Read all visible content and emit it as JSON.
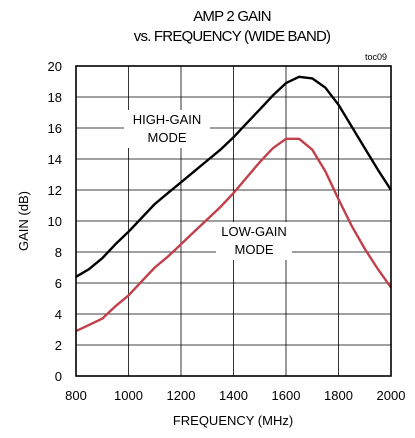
{
  "chart_data": {
    "type": "line",
    "title_lines": [
      "AMP 2 GAIN",
      "vs. FREQUENCY (WIDE BAND)"
    ],
    "note": "toc09",
    "xlabel": "FREQUENCY (MHz)",
    "ylabel": "GAIN (dB)",
    "xlim": [
      800,
      2000
    ],
    "ylim": [
      0,
      20
    ],
    "x_ticks": [
      800,
      1000,
      1200,
      1400,
      1600,
      1800,
      2000
    ],
    "y_ticks": [
      0,
      2,
      4,
      6,
      8,
      10,
      12,
      14,
      16,
      18,
      20
    ],
    "grid": true,
    "annotations": {
      "high": [
        "HIGH-GAIN",
        "MODE"
      ],
      "low": [
        "LOW-GAIN",
        "MODE"
      ]
    },
    "series": [
      {
        "name": "HIGH-GAIN MODE",
        "color": "#000000",
        "points": [
          [
            800,
            6.4
          ],
          [
            850,
            6.9
          ],
          [
            900,
            7.6
          ],
          [
            950,
            8.5
          ],
          [
            1000,
            9.3
          ],
          [
            1050,
            10.2
          ],
          [
            1100,
            11.1
          ],
          [
            1150,
            11.8
          ],
          [
            1200,
            12.5
          ],
          [
            1250,
            13.2
          ],
          [
            1300,
            13.9
          ],
          [
            1350,
            14.6
          ],
          [
            1400,
            15.4
          ],
          [
            1450,
            16.3
          ],
          [
            1500,
            17.2
          ],
          [
            1550,
            18.1
          ],
          [
            1600,
            18.9
          ],
          [
            1650,
            19.3
          ],
          [
            1700,
            19.2
          ],
          [
            1750,
            18.6
          ],
          [
            1800,
            17.5
          ],
          [
            1850,
            16.1
          ],
          [
            1900,
            14.7
          ],
          [
            1950,
            13.3
          ],
          [
            2000,
            12.0
          ]
        ]
      },
      {
        "name": "LOW-GAIN MODE",
        "color": "#c1404a",
        "points": [
          [
            800,
            2.9
          ],
          [
            850,
            3.3
          ],
          [
            900,
            3.7
          ],
          [
            950,
            4.5
          ],
          [
            1000,
            5.2
          ],
          [
            1050,
            6.1
          ],
          [
            1100,
            7.0
          ],
          [
            1150,
            7.7
          ],
          [
            1200,
            8.5
          ],
          [
            1250,
            9.3
          ],
          [
            1300,
            10.1
          ],
          [
            1350,
            10.9
          ],
          [
            1400,
            11.8
          ],
          [
            1450,
            12.8
          ],
          [
            1500,
            13.8
          ],
          [
            1550,
            14.7
          ],
          [
            1600,
            15.3
          ],
          [
            1650,
            15.3
          ],
          [
            1700,
            14.6
          ],
          [
            1750,
            13.2
          ],
          [
            1800,
            11.4
          ],
          [
            1850,
            9.7
          ],
          [
            1900,
            8.2
          ],
          [
            1950,
            6.9
          ],
          [
            2000,
            5.7
          ]
        ]
      }
    ]
  }
}
